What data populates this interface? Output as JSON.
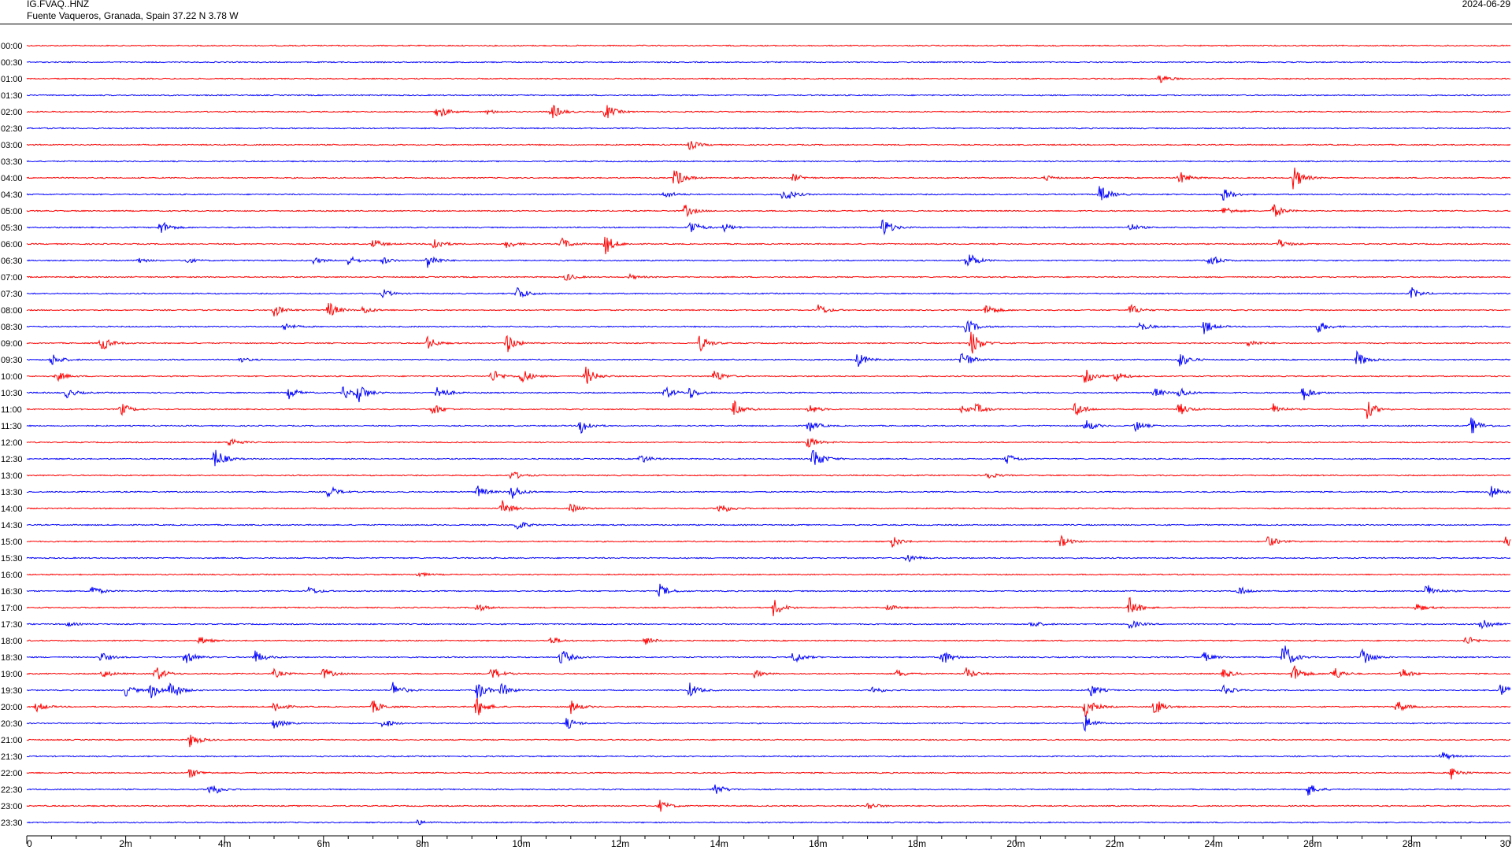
{
  "header": {
    "station": "IG.FVAQ..HNZ",
    "location": "Fuente Vaqueros, Granada, Spain  37.22 N 3.78 W",
    "date": "2024-06-29"
  },
  "colors": {
    "trace_even": "#ff0000",
    "trace_odd": "#0000ff",
    "axis": "#000000"
  },
  "chart_data": {
    "type": "line",
    "title": "",
    "xlabel": "",
    "ylabel": "",
    "xlim": [
      0,
      30
    ],
    "x_unit": "minutes",
    "x_ticks": [
      "0",
      "2m",
      "4m",
      "6m",
      "8m",
      "10m",
      "12m",
      "14m",
      "16m",
      "18m",
      "20m",
      "22m",
      "24m",
      "26m",
      "28m",
      "30"
    ],
    "rows": [
      "00:00",
      "00:30",
      "01:00",
      "01:30",
      "02:00",
      "02:30",
      "03:00",
      "03:30",
      "04:00",
      "04:30",
      "05:00",
      "05:30",
      "06:00",
      "06:30",
      "07:00",
      "07:30",
      "08:00",
      "08:30",
      "09:00",
      "09:30",
      "10:00",
      "10:30",
      "11:00",
      "11:30",
      "12:00",
      "12:30",
      "13:00",
      "13:30",
      "14:00",
      "14:30",
      "15:00",
      "15:30",
      "16:00",
      "16:30",
      "17:00",
      "17:30",
      "18:00",
      "18:30",
      "19:00",
      "19:30",
      "20:00",
      "20:30",
      "21:00",
      "21:30",
      "22:00",
      "22:30",
      "23:00",
      "23:30"
    ],
    "events": [
      [],
      [],
      [
        {
          "t": 22.9,
          "a": 0.6
        }
      ],
      [],
      [
        {
          "t": 8.3,
          "a": 1.0
        },
        {
          "t": 9.3,
          "a": 0.3
        },
        {
          "t": 10.6,
          "a": 1.0
        },
        {
          "t": 11.7,
          "a": 1.0
        }
      ],
      [],
      [
        {
          "t": 13.4,
          "a": 0.6
        }
      ],
      [],
      [
        {
          "t": 13.1,
          "a": 1.3
        },
        {
          "t": 15.5,
          "a": 0.5
        },
        {
          "t": 20.6,
          "a": 0.3
        },
        {
          "t": 23.3,
          "a": 0.8
        },
        {
          "t": 25.6,
          "a": 1.6
        }
      ],
      [
        {
          "t": 12.9,
          "a": 0.5
        },
        {
          "t": 15.3,
          "a": 1.0
        },
        {
          "t": 21.7,
          "a": 1.2
        },
        {
          "t": 24.2,
          "a": 0.8
        }
      ],
      [
        {
          "t": 13.3,
          "a": 0.8
        },
        {
          "t": 24.2,
          "a": 0.6
        },
        {
          "t": 25.2,
          "a": 0.9
        }
      ],
      [
        {
          "t": 2.7,
          "a": 0.9
        },
        {
          "t": 13.4,
          "a": 1.0
        },
        {
          "t": 14.1,
          "a": 0.5
        },
        {
          "t": 17.3,
          "a": 1.3
        },
        {
          "t": 22.3,
          "a": 0.5
        }
      ],
      [
        {
          "t": 7.0,
          "a": 0.6
        },
        {
          "t": 8.2,
          "a": 1.0
        },
        {
          "t": 9.7,
          "a": 0.5
        },
        {
          "t": 10.8,
          "a": 0.8
        },
        {
          "t": 11.7,
          "a": 1.2
        },
        {
          "t": 25.3,
          "a": 0.6
        }
      ],
      [
        {
          "t": 2.2,
          "a": 0.4
        },
        {
          "t": 3.2,
          "a": 0.4
        },
        {
          "t": 5.8,
          "a": 0.4
        },
        {
          "t": 6.5,
          "a": 0.6
        },
        {
          "t": 7.2,
          "a": 0.4
        },
        {
          "t": 8.1,
          "a": 1.0
        },
        {
          "t": 19.0,
          "a": 1.3
        },
        {
          "t": 23.9,
          "a": 0.9
        }
      ],
      [
        {
          "t": 10.9,
          "a": 0.5
        },
        {
          "t": 12.2,
          "a": 0.3
        }
      ],
      [
        {
          "t": 7.2,
          "a": 0.5
        },
        {
          "t": 9.9,
          "a": 1.0
        },
        {
          "t": 28.0,
          "a": 0.7
        }
      ],
      [
        {
          "t": 5.0,
          "a": 0.8
        },
        {
          "t": 6.1,
          "a": 1.0
        },
        {
          "t": 6.8,
          "a": 0.5
        },
        {
          "t": 16.0,
          "a": 0.7
        },
        {
          "t": 19.4,
          "a": 0.8
        },
        {
          "t": 22.3,
          "a": 0.8
        }
      ],
      [
        {
          "t": 5.2,
          "a": 0.5
        },
        {
          "t": 19.0,
          "a": 1.0
        },
        {
          "t": 22.5,
          "a": 0.6
        },
        {
          "t": 23.8,
          "a": 0.9
        },
        {
          "t": 26.1,
          "a": 0.8
        }
      ],
      [
        {
          "t": 1.5,
          "a": 1.0
        },
        {
          "t": 8.1,
          "a": 0.8
        },
        {
          "t": 9.7,
          "a": 1.2
        },
        {
          "t": 13.6,
          "a": 1.0
        },
        {
          "t": 19.1,
          "a": 1.6
        },
        {
          "t": 24.7,
          "a": 0.5
        }
      ],
      [
        {
          "t": 0.5,
          "a": 0.8
        },
        {
          "t": 4.3,
          "a": 0.3
        },
        {
          "t": 16.8,
          "a": 0.9
        },
        {
          "t": 18.9,
          "a": 1.3
        },
        {
          "t": 23.3,
          "a": 1.0
        },
        {
          "t": 26.9,
          "a": 1.0
        }
      ],
      [
        {
          "t": 0.6,
          "a": 0.6
        },
        {
          "t": 9.4,
          "a": 0.9
        },
        {
          "t": 10.0,
          "a": 1.0
        },
        {
          "t": 11.3,
          "a": 1.2
        },
        {
          "t": 13.9,
          "a": 0.8
        },
        {
          "t": 21.4,
          "a": 1.0
        },
        {
          "t": 22.0,
          "a": 0.7
        }
      ],
      [
        {
          "t": 0.8,
          "a": 0.6
        },
        {
          "t": 5.3,
          "a": 0.7
        },
        {
          "t": 6.4,
          "a": 0.8
        },
        {
          "t": 6.7,
          "a": 1.2
        },
        {
          "t": 8.3,
          "a": 1.0
        },
        {
          "t": 12.9,
          "a": 0.8
        },
        {
          "t": 13.4,
          "a": 0.7
        },
        {
          "t": 22.8,
          "a": 0.6
        },
        {
          "t": 23.3,
          "a": 0.7
        },
        {
          "t": 25.8,
          "a": 1.0
        }
      ],
      [
        {
          "t": 1.9,
          "a": 0.8
        },
        {
          "t": 8.2,
          "a": 0.8
        },
        {
          "t": 14.3,
          "a": 1.0
        },
        {
          "t": 15.8,
          "a": 0.7
        },
        {
          "t": 18.9,
          "a": 0.5
        },
        {
          "t": 19.2,
          "a": 0.6
        },
        {
          "t": 21.2,
          "a": 1.0
        },
        {
          "t": 23.3,
          "a": 0.8
        },
        {
          "t": 25.2,
          "a": 0.7
        },
        {
          "t": 27.1,
          "a": 1.1
        }
      ],
      [
        {
          "t": 11.2,
          "a": 1.0
        },
        {
          "t": 15.8,
          "a": 0.8
        },
        {
          "t": 21.4,
          "a": 0.8
        },
        {
          "t": 22.4,
          "a": 0.7
        },
        {
          "t": 29.2,
          "a": 1.1
        }
      ],
      [
        {
          "t": 4.1,
          "a": 0.6
        },
        {
          "t": 15.8,
          "a": 0.7
        }
      ],
      [
        {
          "t": 3.8,
          "a": 1.4
        },
        {
          "t": 12.4,
          "a": 0.6
        },
        {
          "t": 15.9,
          "a": 1.5
        },
        {
          "t": 19.8,
          "a": 0.7
        }
      ],
      [
        {
          "t": 9.8,
          "a": 0.6
        },
        {
          "t": 19.4,
          "a": 0.5
        }
      ],
      [
        {
          "t": 6.1,
          "a": 0.8
        },
        {
          "t": 9.1,
          "a": 0.8
        },
        {
          "t": 9.8,
          "a": 1.0
        },
        {
          "t": 29.6,
          "a": 1.0
        }
      ],
      [
        {
          "t": 9.6,
          "a": 1.0
        },
        {
          "t": 11.0,
          "a": 0.6
        },
        {
          "t": 14.0,
          "a": 0.8
        }
      ],
      [
        {
          "t": 9.9,
          "a": 0.7
        }
      ],
      [
        {
          "t": 17.5,
          "a": 0.7
        },
        {
          "t": 20.9,
          "a": 0.7
        },
        {
          "t": 25.1,
          "a": 0.7
        },
        {
          "t": 29.9,
          "a": 0.7
        }
      ],
      [
        {
          "t": 17.8,
          "a": 0.6
        }
      ],
      [
        {
          "t": 7.9,
          "a": 0.3
        }
      ],
      [
        {
          "t": 1.3,
          "a": 0.7
        },
        {
          "t": 5.7,
          "a": 0.5
        },
        {
          "t": 12.8,
          "a": 0.8
        },
        {
          "t": 24.5,
          "a": 0.6
        },
        {
          "t": 28.3,
          "a": 0.9
        }
      ],
      [
        {
          "t": 9.1,
          "a": 0.5
        },
        {
          "t": 15.1,
          "a": 1.1
        },
        {
          "t": 17.4,
          "a": 0.4
        },
        {
          "t": 22.3,
          "a": 1.2
        },
        {
          "t": 28.1,
          "a": 0.5
        }
      ],
      [
        {
          "t": 0.8,
          "a": 0.3
        },
        {
          "t": 20.3,
          "a": 0.5
        },
        {
          "t": 22.3,
          "a": 0.6
        },
        {
          "t": 29.4,
          "a": 1.0
        }
      ],
      [
        {
          "t": 3.5,
          "a": 0.5
        },
        {
          "t": 10.6,
          "a": 0.5
        },
        {
          "t": 12.5,
          "a": 0.5
        },
        {
          "t": 29.1,
          "a": 0.6
        }
      ],
      [
        {
          "t": 1.5,
          "a": 0.6
        },
        {
          "t": 3.2,
          "a": 1.0
        },
        {
          "t": 4.6,
          "a": 0.9
        },
        {
          "t": 10.8,
          "a": 1.1
        },
        {
          "t": 15.5,
          "a": 0.8
        },
        {
          "t": 18.5,
          "a": 1.0
        },
        {
          "t": 23.8,
          "a": 0.6
        },
        {
          "t": 25.4,
          "a": 1.9
        },
        {
          "t": 27.0,
          "a": 1.3
        }
      ],
      [
        {
          "t": 1.5,
          "a": 0.6
        },
        {
          "t": 2.6,
          "a": 1.0
        },
        {
          "t": 5.0,
          "a": 0.5
        },
        {
          "t": 6.0,
          "a": 0.7
        },
        {
          "t": 9.4,
          "a": 0.8
        },
        {
          "t": 14.7,
          "a": 0.5
        },
        {
          "t": 17.6,
          "a": 0.5
        },
        {
          "t": 19.0,
          "a": 0.7
        },
        {
          "t": 24.2,
          "a": 0.6
        },
        {
          "t": 25.6,
          "a": 1.2
        },
        {
          "t": 26.4,
          "a": 1.0
        },
        {
          "t": 27.8,
          "a": 0.7
        }
      ],
      [
        {
          "t": 2.0,
          "a": 0.7
        },
        {
          "t": 2.5,
          "a": 1.0
        },
        {
          "t": 2.9,
          "a": 1.3
        },
        {
          "t": 7.4,
          "a": 1.0
        },
        {
          "t": 9.1,
          "a": 1.2
        },
        {
          "t": 9.6,
          "a": 0.8
        },
        {
          "t": 13.4,
          "a": 0.9
        },
        {
          "t": 17.1,
          "a": 0.5
        },
        {
          "t": 21.5,
          "a": 0.8
        },
        {
          "t": 24.2,
          "a": 0.6
        },
        {
          "t": 29.8,
          "a": 0.8
        }
      ],
      [
        {
          "t": 0.2,
          "a": 0.6
        },
        {
          "t": 5.0,
          "a": 0.8
        },
        {
          "t": 7.0,
          "a": 0.8
        },
        {
          "t": 9.1,
          "a": 1.3
        },
        {
          "t": 11.0,
          "a": 0.8
        },
        {
          "t": 21.4,
          "a": 1.3
        },
        {
          "t": 22.8,
          "a": 1.1
        },
        {
          "t": 27.7,
          "a": 0.8
        }
      ],
      [
        {
          "t": 5.0,
          "a": 0.7
        },
        {
          "t": 7.2,
          "a": 0.6
        },
        {
          "t": 10.9,
          "a": 0.8
        },
        {
          "t": 21.4,
          "a": 1.0
        }
      ],
      [
        {
          "t": 3.3,
          "a": 0.9
        }
      ],
      [
        {
          "t": 28.6,
          "a": 0.6
        }
      ],
      [
        {
          "t": 3.3,
          "a": 0.6
        },
        {
          "t": 28.8,
          "a": 0.8
        }
      ],
      [
        {
          "t": 3.7,
          "a": 1.0
        },
        {
          "t": 13.9,
          "a": 0.8
        },
        {
          "t": 25.9,
          "a": 0.8
        }
      ],
      [
        {
          "t": 12.8,
          "a": 0.7
        },
        {
          "t": 17.0,
          "a": 0.5
        }
      ],
      [
        {
          "t": 7.9,
          "a": 0.3
        }
      ]
    ]
  }
}
